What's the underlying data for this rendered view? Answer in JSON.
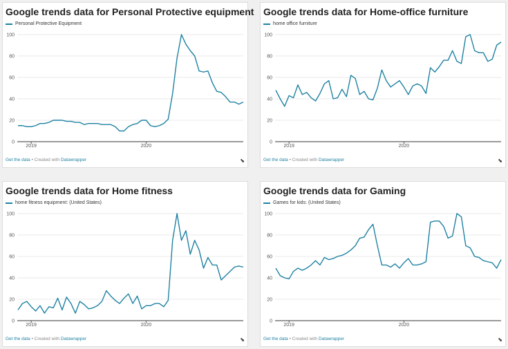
{
  "footer": {
    "get_data": "Get the data",
    "created_with": " • Created with ",
    "datawrapper": "Datawrapper"
  },
  "colors": {
    "line": "#1d81a2",
    "grid": "#e3e3e3",
    "axis": "#333333"
  },
  "icons": {
    "expand": "expand-arrow-icon"
  },
  "chart_data": [
    {
      "type": "line",
      "title": "Google trends data for Personal Protective equipment",
      "series": [
        {
          "name": "Personal Protective Equipment",
          "values": [
            15,
            15,
            14,
            14,
            15,
            17,
            17,
            18,
            20,
            20,
            20,
            19,
            19,
            18,
            18,
            16,
            17,
            17,
            17,
            16,
            16,
            16,
            14,
            10,
            10,
            14,
            16,
            17,
            20,
            20,
            15,
            14,
            15,
            17,
            21,
            45,
            78,
            100,
            91,
            85,
            80,
            66,
            65,
            66,
            55,
            47,
            46,
            42,
            37,
            37,
            35,
            37
          ]
        }
      ],
      "x_ticks": [
        {
          "index": 3,
          "label": "2019"
        },
        {
          "index": 29,
          "label": "2020"
        }
      ],
      "ylim": [
        0,
        100
      ],
      "yticks": [
        0,
        20,
        40,
        60,
        80,
        100
      ],
      "grid": true
    },
    {
      "type": "line",
      "title": "Google trends data for Home-office furniture",
      "series": [
        {
          "name": "home office furniture",
          "values": [
            48,
            40,
            33,
            43,
            41,
            53,
            44,
            46,
            41,
            38,
            45,
            54,
            57,
            40,
            41,
            49,
            42,
            62,
            59,
            44,
            47,
            40,
            39,
            50,
            67,
            57,
            51,
            54,
            57,
            51,
            44,
            52,
            54,
            52,
            45,
            69,
            65,
            70,
            76,
            76,
            85,
            75,
            73,
            98,
            100,
            85,
            83,
            83,
            75,
            77,
            90,
            93
          ]
        }
      ],
      "x_ticks": [
        {
          "index": 3,
          "label": "2019"
        },
        {
          "index": 29,
          "label": "2020"
        }
      ],
      "ylim": [
        0,
        100
      ],
      "yticks": [
        0,
        20,
        40,
        60,
        80,
        100
      ],
      "grid": true
    },
    {
      "type": "line",
      "title": "Google trends data for Home fitness",
      "series": [
        {
          "name": "home fitness equipment: (United States)",
          "values": [
            10,
            16,
            18,
            13,
            9,
            14,
            7,
            13,
            12,
            21,
            10,
            22,
            16,
            7,
            18,
            15,
            11,
            12,
            14,
            18,
            28,
            23,
            19,
            16,
            21,
            25,
            16,
            23,
            11,
            14,
            14,
            16,
            16,
            13,
            19,
            75,
            100,
            75,
            84,
            62,
            75,
            66,
            49,
            59,
            52,
            52,
            38,
            42,
            46,
            50,
            51,
            50
          ]
        }
      ],
      "x_ticks": [
        {
          "index": 3,
          "label": "2019"
        },
        {
          "index": 29,
          "label": "2020"
        }
      ],
      "ylim": [
        0,
        100
      ],
      "yticks": [
        0,
        20,
        40,
        60,
        80,
        100
      ],
      "grid": true
    },
    {
      "type": "line",
      "title": "Google trends data for Gaming",
      "series": [
        {
          "name": "Games for kids: (United States)",
          "values": [
            49,
            42,
            40,
            39,
            46,
            49,
            47,
            49,
            52,
            56,
            52,
            59,
            57,
            58,
            60,
            61,
            63,
            66,
            70,
            77,
            78,
            85,
            90,
            70,
            52,
            52,
            50,
            53,
            49,
            54,
            58,
            52,
            52,
            53,
            55,
            92,
            93,
            93,
            88,
            77,
            79,
            100,
            97,
            70,
            68,
            60,
            59,
            56,
            55,
            54,
            49,
            57
          ]
        }
      ],
      "x_ticks": [
        {
          "index": 3,
          "label": "2019"
        },
        {
          "index": 29,
          "label": "2020"
        }
      ],
      "ylim": [
        0,
        100
      ],
      "yticks": [
        0,
        20,
        40,
        60,
        80,
        100
      ],
      "grid": true
    }
  ]
}
